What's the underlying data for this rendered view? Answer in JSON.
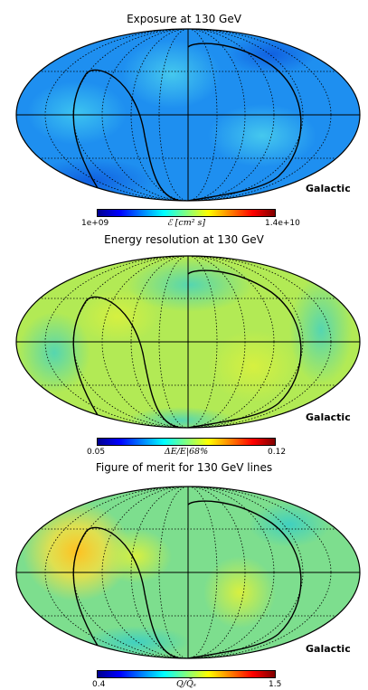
{
  "panels": [
    {
      "title": "Exposure at 130 GeV",
      "coord_label": "Galactic",
      "colorbar": {
        "min": "1e+09",
        "max": "1.4e+10",
        "label": "ℰ [cm² s]"
      },
      "colors": {
        "base": "#1e8ff0",
        "blob": "#36b8ee"
      }
    },
    {
      "title": "Energy resolution at 130 GeV",
      "coord_label": "Galactic",
      "colorbar": {
        "min": "0.05",
        "max": "0.12",
        "label": "ΔE/E|68%"
      },
      "colors": {
        "base": "#b2ea55",
        "blob": "#55d3b4"
      }
    },
    {
      "title": "Figure of merit for 130 GeV lines",
      "coord_label": "Galactic",
      "colorbar": {
        "min": "0.4",
        "max": "1.5",
        "label": "Q/Q̄ₛ"
      },
      "colors": {
        "base": "#7dde8e",
        "blob": "#ffce30"
      }
    }
  ],
  "colormap": [
    "#00008f",
    "#0000ff",
    "#0080ff",
    "#00ffff",
    "#80ff80",
    "#ffff00",
    "#ff8000",
    "#ff0000",
    "#800000"
  ]
}
